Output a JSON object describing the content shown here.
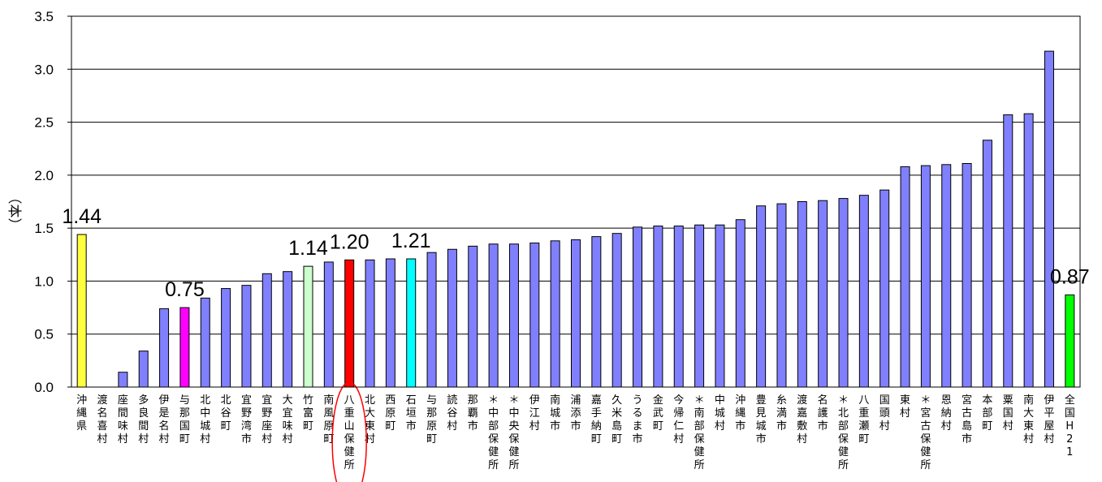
{
  "chart_data": {
    "type": "bar",
    "ylabel": "（本）",
    "ylim": [
      0,
      3.5
    ],
    "yticks": [
      "0.0",
      "0.5",
      "1.0",
      "1.5",
      "2.0",
      "2.5",
      "3.0",
      "3.5"
    ],
    "grid": true,
    "categories": [
      "沖縄県",
      "渡名喜村",
      "座間味村",
      "多良間村",
      "伊是名村",
      "与那国町",
      "北中城村",
      "北谷町",
      "宜野湾市",
      "宜野座村",
      "大宜味村",
      "竹富町",
      "南風原町",
      "八重山保健所",
      "北大東村",
      "西原町",
      "石垣市",
      "与那原町",
      "読谷村",
      "那覇市",
      "＊中部保健所",
      "＊中央保健所",
      "伊江村",
      "南城市",
      "浦添市",
      "嘉手納町",
      "久米島町",
      "うるま市",
      "金武町",
      "今帰仁村",
      "＊南部保健所",
      "中城村",
      "沖縄市",
      "豊見城市",
      "糸満市",
      "渡嘉敷村",
      "名護市",
      "＊北部保健所",
      "八重瀬町",
      "国頭村",
      "東村",
      "＊宮古保健所",
      "恩納村",
      "宮古島市",
      "本部町",
      "粟国村",
      "南大東村",
      "伊平屋村",
      "全国H21"
    ],
    "values": [
      1.44,
      0,
      0.14,
      0.34,
      0.74,
      0.75,
      0.84,
      0.93,
      0.96,
      1.07,
      1.09,
      1.14,
      1.18,
      1.2,
      1.2,
      1.21,
      1.21,
      1.27,
      1.3,
      1.33,
      1.35,
      1.35,
      1.36,
      1.38,
      1.39,
      1.42,
      1.45,
      1.51,
      1.52,
      1.52,
      1.53,
      1.53,
      1.58,
      1.71,
      1.73,
      1.75,
      1.76,
      1.78,
      1.81,
      1.86,
      2.08,
      2.09,
      2.1,
      2.11,
      2.33,
      2.57,
      2.58,
      3.17,
      0.87
    ],
    "colors": {
      "default": "#8080FF",
      "沖縄県": "#FFFF40",
      "与那国町": "#FF00FF",
      "竹富町": "#CCFFCC",
      "八重山保健所": "#FF0000",
      "石垣市": "#00FFFF",
      "全国H21": "#00FF00",
      "highlight_ring": "#FF0000"
    },
    "data_labels": [
      {
        "category": "沖縄県",
        "text": "1.44"
      },
      {
        "category": "与那国町",
        "text": "0.75"
      },
      {
        "category": "竹富町",
        "text": "1.14"
      },
      {
        "category": "八重山保健所",
        "text": "1.20"
      },
      {
        "category": "石垣市",
        "text": "1.21"
      },
      {
        "category": "全国H21",
        "text": "0.87"
      }
    ],
    "highlighted_category": "八重山保健所"
  }
}
